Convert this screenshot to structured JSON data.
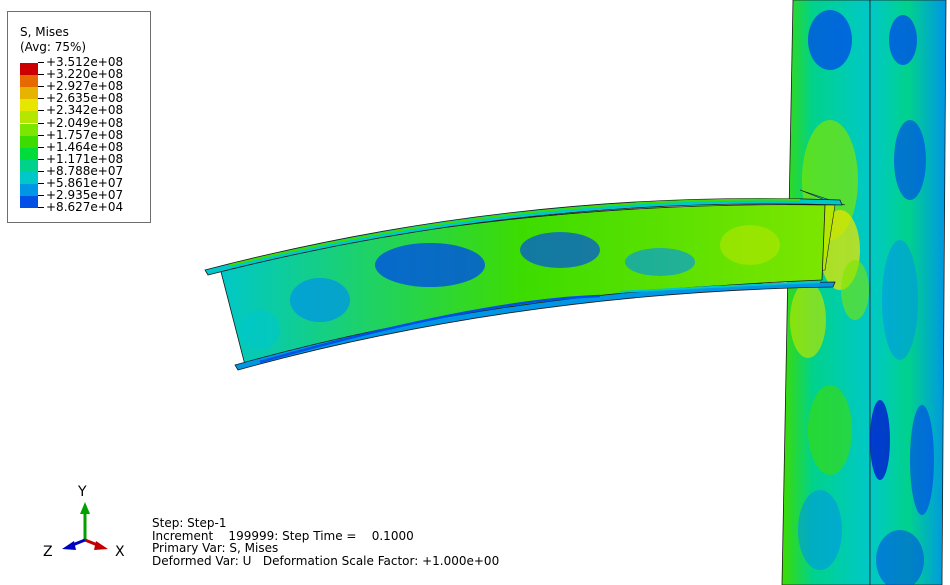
{
  "legend": {
    "title": "S, Mises",
    "subtitle": "(Avg: 75%)",
    "entries": [
      {
        "label": "+3.512e+08",
        "color": "#cc0000"
      },
      {
        "label": "+3.220e+08",
        "color": "#e66a00"
      },
      {
        "label": "+2.927e+08",
        "color": "#e6b400"
      },
      {
        "label": "+2.635e+08",
        "color": "#e6e600"
      },
      {
        "label": "+2.342e+08",
        "color": "#b4e600"
      },
      {
        "label": "+2.049e+08",
        "color": "#7ce600"
      },
      {
        "label": "+1.757e+08",
        "color": "#3ddc00"
      },
      {
        "label": "+1.464e+08",
        "color": "#00dc3c"
      },
      {
        "label": "+1.171e+08",
        "color": "#00d28c"
      },
      {
        "label": "+8.788e+07",
        "color": "#00c8c8"
      },
      {
        "label": "+5.861e+07",
        "color": "#0096e6"
      },
      {
        "label": "+2.935e+07",
        "color": "#0050e6"
      },
      {
        "label": "+8.627e+04",
        "color": "#0000d2"
      }
    ]
  },
  "triad": {
    "x": "X",
    "y": "Y",
    "z": "Z"
  },
  "stepinfo": {
    "line1": "Step: Step-1",
    "line2": "Increment    199999: Step Time =    0.1000",
    "line3": "Primary Var: S, Mises",
    "line4": "Deformed Var: U   Deformation Scale Factor: +1.000e+00"
  }
}
